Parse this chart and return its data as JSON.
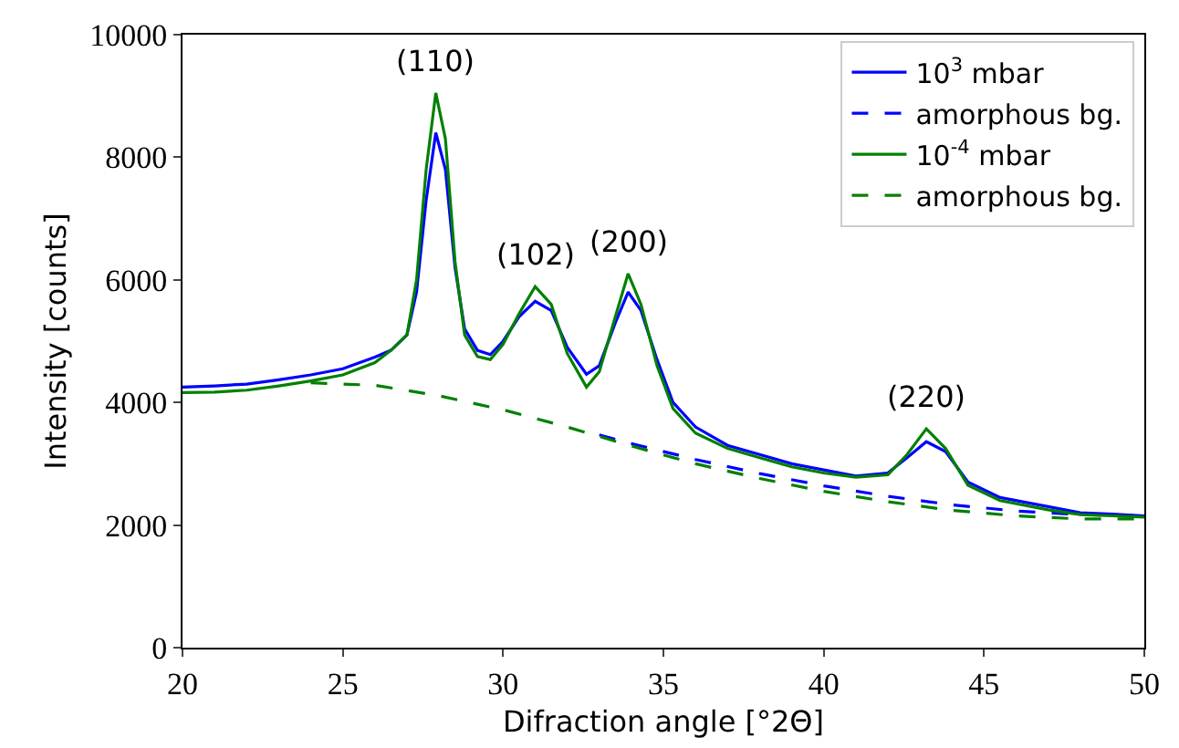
{
  "chart_data": {
    "type": "line",
    "xlabel": "Difraction angle [°2Θ]",
    "ylabel": "Intensity [counts]",
    "xlim": [
      20,
      50
    ],
    "ylim": [
      0,
      10000
    ],
    "xticks": [
      20,
      25,
      30,
      35,
      40,
      45,
      50
    ],
    "yticks": [
      0,
      2000,
      4000,
      6000,
      8000,
      10000
    ],
    "grid": false,
    "legend": "top right",
    "marker": "none",
    "annotations": [
      {
        "text": "(110)",
        "x": 27.9,
        "y": 9050
      },
      {
        "text": "(102)",
        "x": 31,
        "y": 5890
      },
      {
        "text": "(200)",
        "x": 33.9,
        "y": 6100
      },
      {
        "text": "(220)",
        "x": 43.2,
        "y": 3570
      }
    ],
    "series": [
      {
        "name": "10$^{3}$ mbar",
        "color": "#0000ff",
        "line_style": "solid",
        "x": [
          20,
          21,
          22,
          23,
          24,
          25,
          26,
          26.5,
          27,
          27.3,
          27.6,
          27.9,
          28.2,
          28.5,
          28.8,
          29.2,
          29.6,
          30,
          30.5,
          31,
          31.5,
          32,
          32.6,
          33,
          33.5,
          33.9,
          34.3,
          34.8,
          35.3,
          36,
          37,
          38,
          39,
          40,
          41,
          42,
          42.6,
          43.2,
          43.8,
          44.5,
          45.5,
          47,
          48,
          49,
          50
        ],
        "values": [
          4250,
          4270,
          4300,
          4370,
          4450,
          4550,
          4740,
          4850,
          5100,
          5800,
          7300,
          8400,
          7800,
          6200,
          5200,
          4850,
          4780,
          5000,
          5400,
          5650,
          5500,
          4900,
          4460,
          4600,
          5300,
          5800,
          5500,
          4700,
          4000,
          3600,
          3300,
          3150,
          3000,
          2900,
          2800,
          2850,
          3100,
          3360,
          3200,
          2700,
          2450,
          2300,
          2200,
          2180,
          2150
        ]
      },
      {
        "name": "amorphous bg.",
        "color": "#0000ff",
        "line_style": "dashed",
        "x": [
          33,
          34,
          36,
          38,
          40,
          42,
          44,
          46,
          48,
          50
        ],
        "values": [
          3470,
          3330,
          3070,
          2840,
          2640,
          2470,
          2330,
          2230,
          2170,
          2150
        ]
      },
      {
        "name": "10$^{-4}$ mbar",
        "color": "#008000",
        "line_style": "solid",
        "x": [
          20,
          21,
          22,
          23,
          24,
          25,
          26,
          26.5,
          27,
          27.3,
          27.6,
          27.9,
          28.2,
          28.5,
          28.8,
          29.2,
          29.6,
          30,
          30.5,
          31,
          31.5,
          32,
          32.6,
          33,
          33.5,
          33.9,
          34.3,
          34.8,
          35.3,
          36,
          37,
          38,
          39,
          40,
          41,
          42,
          42.6,
          43.2,
          43.8,
          44.5,
          45.5,
          47,
          48,
          49,
          50
        ],
        "values": [
          4160,
          4170,
          4200,
          4270,
          4350,
          4450,
          4650,
          4850,
          5100,
          6000,
          7800,
          9050,
          8300,
          6300,
          5100,
          4750,
          4700,
          4950,
          5450,
          5890,
          5600,
          4800,
          4250,
          4500,
          5400,
          6100,
          5600,
          4600,
          3900,
          3500,
          3250,
          3100,
          2950,
          2850,
          2780,
          2820,
          3150,
          3570,
          3250,
          2650,
          2400,
          2250,
          2170,
          2150,
          2130
        ]
      },
      {
        "name": "amorphous bg.",
        "color": "#008000",
        "line_style": "dashed",
        "x": [
          24,
          26,
          28,
          30,
          32,
          34,
          36,
          38,
          40,
          42,
          44,
          46,
          48,
          50
        ],
        "values": [
          4320,
          4280,
          4110,
          3880,
          3600,
          3290,
          3000,
          2760,
          2550,
          2380,
          2240,
          2150,
          2100,
          2100
        ]
      }
    ]
  }
}
